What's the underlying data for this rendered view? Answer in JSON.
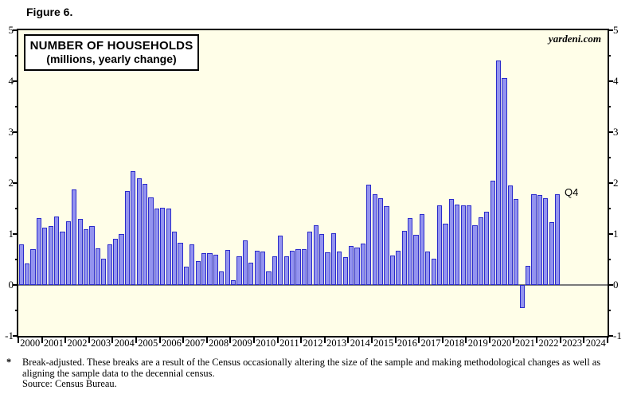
{
  "figure_label": "Figure 6.",
  "watermark": "yardeni.com",
  "footnote": {
    "marker": "*",
    "line1": "Break-adjusted. These breaks are a result of the Census occasionally altering the size of the sample and making methodological changes as well as",
    "line2": "aligning the sample data to the decennial census.",
    "line3": "Source: Census Bureau."
  },
  "chart_data": {
    "type": "bar",
    "title": "NUMBER OF HOUSEHOLDS",
    "subtitle": "(millions, yearly change)",
    "annotation_last_bar": "Q4",
    "ylim": [
      -1,
      5
    ],
    "yticks": [
      -1,
      0,
      1,
      2,
      3,
      4,
      5
    ],
    "minor_ytick_step": 0.5,
    "grid": "zero-line-only",
    "x_axis_years": [
      2000,
      2001,
      2002,
      2003,
      2004,
      2005,
      2006,
      2007,
      2008,
      2009,
      2010,
      2011,
      2012,
      2013,
      2014,
      2015,
      2016,
      2017,
      2018,
      2019,
      2020,
      2021,
      2022,
      2023,
      2024
    ],
    "frequency": "quarterly",
    "data_start": "2000Q1",
    "data_end": "2022Q4",
    "series": [
      {
        "name": "Number of households, yearly change (millions)",
        "values": [
          0.8,
          0.42,
          0.7,
          1.32,
          1.12,
          1.15,
          1.35,
          1.05,
          1.25,
          1.88,
          1.3,
          1.1,
          1.15,
          0.72,
          0.51,
          0.79,
          0.9,
          1.0,
          1.85,
          2.23,
          2.09,
          1.99,
          1.72,
          1.5,
          1.52,
          1.5,
          1.04,
          0.83,
          0.36,
          0.79,
          0.47,
          0.62,
          0.63,
          0.6,
          0.27,
          0.69,
          0.1,
          0.56,
          0.87,
          0.44,
          0.67,
          0.65,
          0.27,
          0.57,
          0.97,
          0.57,
          0.67,
          0.7,
          0.71,
          1.05,
          1.17,
          1.0,
          0.64,
          1.02,
          0.66,
          0.55,
          0.77,
          0.73,
          0.82,
          1.97,
          1.78,
          1.7,
          1.54,
          0.58,
          0.67,
          1.07,
          1.32,
          0.98,
          1.39,
          0.65,
          0.52,
          1.57,
          1.21,
          1.68,
          1.58,
          1.56,
          1.57,
          1.17,
          1.33,
          1.44,
          2.05,
          4.41,
          4.06,
          1.95,
          1.68,
          -0.46,
          0.38,
          1.78,
          1.77,
          1.71,
          1.24,
          1.78
        ]
      }
    ],
    "colors": {
      "bar_fill": "#9393ef",
      "bar_border": "#2b2bcb",
      "plot_background": "#fffee8",
      "zero_line": "#7a7a7a",
      "frame": "#000000"
    }
  }
}
